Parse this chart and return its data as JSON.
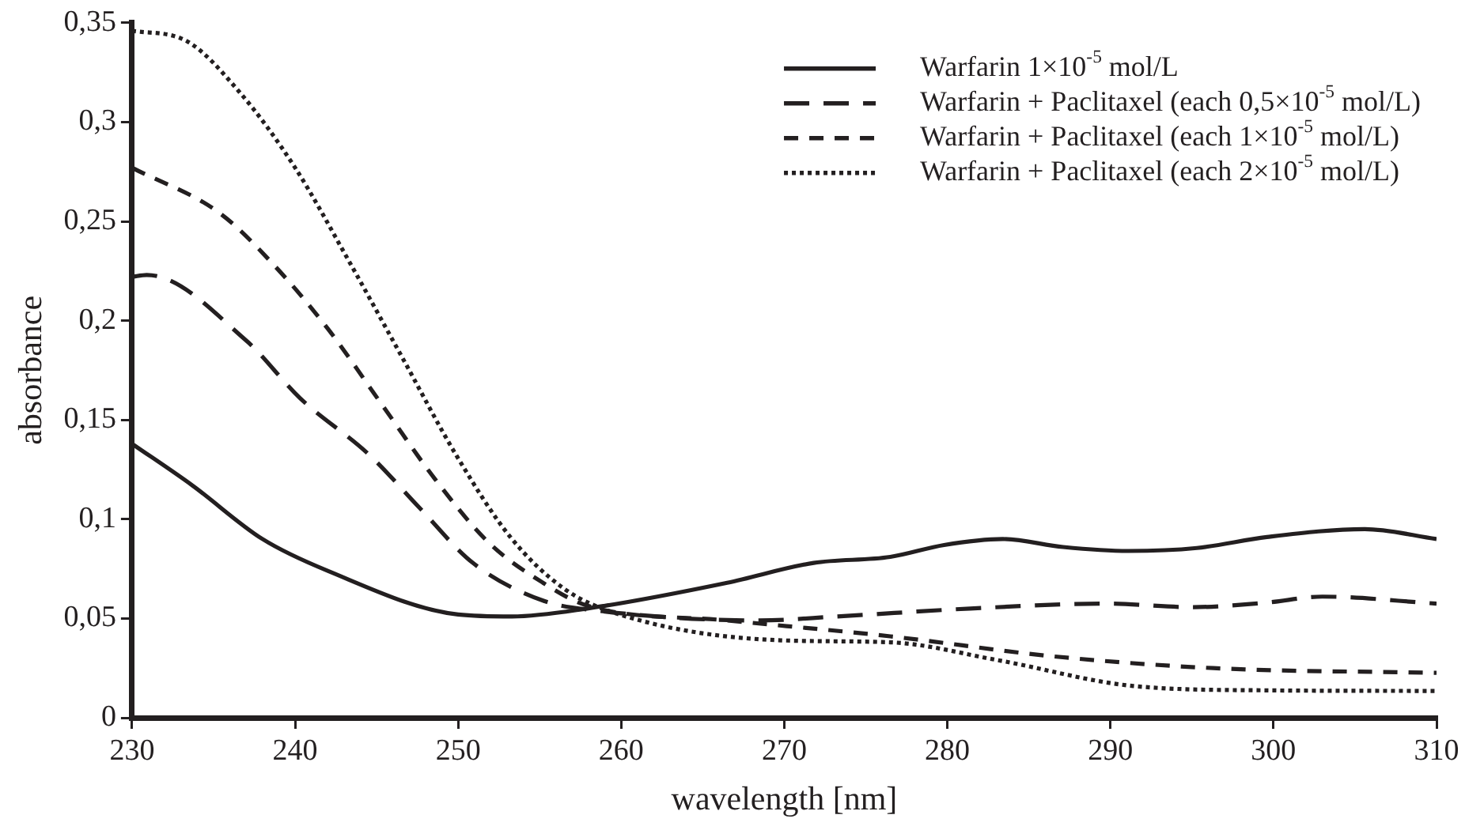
{
  "chart_data": {
    "type": "line",
    "xlabel": "wavelength [nm]",
    "ylabel": "absorbance",
    "xlim": [
      230,
      310
    ],
    "xticks": [
      230,
      240,
      250,
      260,
      270,
      280,
      290,
      300,
      310
    ],
    "ylim": [
      0,
      0.35
    ],
    "yticks": [
      0,
      {
        "value": 0.05,
        "label": "0,05"
      },
      {
        "value": 0.1,
        "label": "0,1"
      },
      {
        "value": 0.15,
        "label": "0,15"
      },
      {
        "value": 0.2,
        "label": "0,2"
      },
      {
        "value": 0.25,
        "label": "0,25"
      },
      {
        "value": 0.3,
        "label": "0,3"
      },
      {
        "value": 0.35,
        "label": "0,35"
      }
    ],
    "legend": "top right",
    "marker": "none",
    "series": [
      {
        "name": "Warfarin 1×10$^{-5}$ mol/L",
        "color": "#231f20",
        "line_style": "solid",
        "x": [
          230,
          233.7,
          238,
          242,
          250,
          253.3,
          257.9,
          266.5,
          271.8,
          276.5,
          279.8,
          283.4,
          287.1,
          291.1,
          295.3,
          299.6,
          305.6,
          310
        ],
        "values": [
          0.138,
          0.117,
          0.09,
          0.074,
          0.052,
          0.051,
          0.055,
          0.068,
          0.078,
          0.081,
          0.087,
          0.09,
          0.086,
          0.084,
          0.0855,
          0.091,
          0.095,
          0.09
        ]
      },
      {
        "name": "Warfarin + Paclitaxel (each 0,5×10$^{-5}$ mol/L)",
        "color": "#231f20",
        "line_style": "dashed",
        "x": [
          230,
          230.9,
          237,
          240.3,
          244.6,
          247.6,
          250.9,
          255.2,
          258.5,
          268.5,
          273.2,
          281.4,
          289.7,
          295,
          299.6,
          303,
          310
        ],
        "values": [
          0.222,
          0.223,
          0.19,
          0.161,
          0.132,
          0.106,
          0.078,
          0.059,
          0.054,
          0.049,
          0.051,
          0.055,
          0.0575,
          0.0557,
          0.058,
          0.061,
          0.0575
        ]
      },
      {
        "name": "Warfarin + Paclitaxel (each 1×10$^{-5}$ mol/L)",
        "color": "#231f20",
        "line_style": "dashed",
        "x": [
          230,
          235.4,
          238.7,
          242,
          245.3,
          248.6,
          251.9,
          255.2,
          257.9,
          266.5,
          276.5,
          286.4,
          296.3,
          310
        ],
        "values": [
          0.277,
          0.254,
          0.228,
          0.196,
          0.158,
          0.12,
          0.088,
          0.068,
          0.0565,
          0.049,
          0.041,
          0.031,
          0.025,
          0.0226
        ]
      },
      {
        "name": "Warfarin + Paclitaxel (each 2×10$^{-5}$ mol/L)",
        "color": "#231f20",
        "line_style": "dotted",
        "x": [
          230,
          233.3,
          236.6,
          240,
          243.3,
          246.6,
          249.9,
          253.2,
          256.5,
          259.9,
          269.8,
          276.5,
          283.1,
          291.4,
          299.6,
          310
        ],
        "values": [
          0.346,
          0.341,
          0.315,
          0.277,
          0.23,
          0.181,
          0.132,
          0.091,
          0.065,
          0.052,
          0.039,
          0.038,
          0.029,
          0.016,
          0.0138,
          0.0135
        ]
      }
    ]
  }
}
